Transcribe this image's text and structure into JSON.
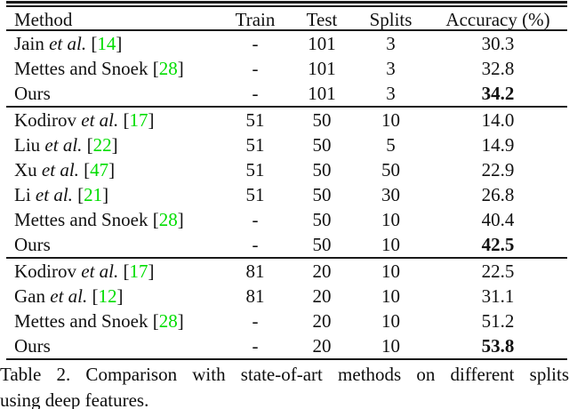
{
  "table": {
    "columns": [
      "Method",
      "Train",
      "Test",
      "Splits",
      "Accuracy (%)"
    ],
    "sections": [
      {
        "rows": [
          {
            "name": "Jain",
            "etal": true,
            "cite": "14",
            "train": "-",
            "test": "101",
            "splits": "3",
            "acc": "30.3",
            "bold": false
          },
          {
            "name": "Mettes and Snoek",
            "etal": false,
            "cite": "28",
            "train": "-",
            "test": "101",
            "splits": "3",
            "acc": "32.8",
            "bold": false
          },
          {
            "name": "Ours",
            "etal": false,
            "cite": null,
            "train": "-",
            "test": "101",
            "splits": "3",
            "acc": "34.2",
            "bold": true
          }
        ]
      },
      {
        "rows": [
          {
            "name": "Kodirov",
            "etal": true,
            "cite": "17",
            "train": "51",
            "test": "50",
            "splits": "10",
            "acc": "14.0",
            "bold": false
          },
          {
            "name": "Liu",
            "etal": true,
            "cite": "22",
            "train": "51",
            "test": "50",
            "splits": "5",
            "acc": "14.9",
            "bold": false
          },
          {
            "name": "Xu",
            "etal": true,
            "cite": "47",
            "train": "51",
            "test": "50",
            "splits": "50",
            "acc": "22.9",
            "bold": false
          },
          {
            "name": "Li",
            "etal": true,
            "cite": "21",
            "train": "51",
            "test": "50",
            "splits": "30",
            "acc": "26.8",
            "bold": false
          },
          {
            "name": "Mettes and Snoek",
            "etal": false,
            "cite": "28",
            "train": "-",
            "test": "50",
            "splits": "10",
            "acc": "40.4",
            "bold": false
          },
          {
            "name": "Ours",
            "etal": false,
            "cite": null,
            "train": "-",
            "test": "50",
            "splits": "10",
            "acc": "42.5",
            "bold": true
          }
        ]
      },
      {
        "rows": [
          {
            "name": "Kodirov",
            "etal": true,
            "cite": "17",
            "train": "81",
            "test": "20",
            "splits": "10",
            "acc": "22.5",
            "bold": false
          },
          {
            "name": "Gan",
            "etal": true,
            "cite": "12",
            "train": "81",
            "test": "20",
            "splits": "10",
            "acc": "31.1",
            "bold": false
          },
          {
            "name": "Mettes and Snoek",
            "etal": false,
            "cite": "28",
            "train": "-",
            "test": "20",
            "splits": "10",
            "acc": "51.2",
            "bold": false
          },
          {
            "name": "Ours",
            "etal": false,
            "cite": null,
            "train": "-",
            "test": "20",
            "splits": "10",
            "acc": "53.8",
            "bold": true
          }
        ]
      }
    ],
    "etal_label": "et al.",
    "caption_line1": "Table 2. Comparison with state-of-art methods on different splits",
    "caption_line2": "using deep features."
  },
  "colors": {
    "citation_green": "#00dd00",
    "text": "#111111",
    "rule": "#1a1a1a",
    "background": "#ffffff"
  }
}
